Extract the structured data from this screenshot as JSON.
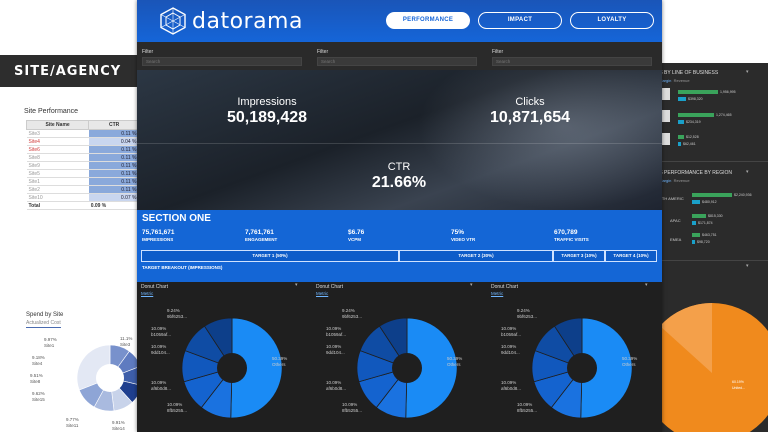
{
  "left": {
    "header": "SITE/AGENCY",
    "section_title": "Site Performance",
    "table": {
      "col_site": "Site Name",
      "col_ctr": "CTR",
      "rows": [
        {
          "site": "Site3",
          "ctr": "0.11 %"
        },
        {
          "site": "Site4",
          "ctr": "0.04 %"
        },
        {
          "site": "Site6",
          "ctr": "0.11 %"
        },
        {
          "site": "Site8",
          "ctr": "0.11 %"
        },
        {
          "site": "Site9",
          "ctr": "0.11 %"
        },
        {
          "site": "Site5",
          "ctr": "0.11 %"
        },
        {
          "site": "Site1",
          "ctr": "0.11 %"
        },
        {
          "site": "Site2",
          "ctr": "0.11 %"
        },
        {
          "site": "Site10",
          "ctr": "0.07 %"
        }
      ],
      "total_label": "Total",
      "total_value": "0.09 %"
    },
    "spend_title": "Spend by Site",
    "spend_sub": "Actualized Cost",
    "pie_labels": [
      {
        "pct": "9.97%",
        "name": "Site1"
      },
      {
        "pct": "9.18%",
        "name": "Site4"
      },
      {
        "pct": "9.51%",
        "name": "Site8"
      },
      {
        "pct": "9.62%",
        "name": "Site15"
      },
      {
        "pct": "9.77%",
        "name": "Site11"
      },
      {
        "pct": "9.91%",
        "name": "Site14"
      },
      {
        "pct": "11.1%",
        "name": "Site3"
      }
    ]
  },
  "nav": {
    "brand": "datorama",
    "tabs": [
      "PERFORMANCE",
      "IMPACT",
      "LOYALTY"
    ]
  },
  "filters": [
    {
      "label": "Filter",
      "placeholder": "Search"
    },
    {
      "label": "Filter",
      "placeholder": "Search"
    },
    {
      "label": "Filter",
      "placeholder": "Search"
    }
  ],
  "kpis": {
    "impressions": {
      "label": "Impressions",
      "value": "50,189,428"
    },
    "clicks": {
      "label": "Clicks",
      "value": "10,871,654"
    },
    "ctr": {
      "label": "CTR",
      "value": "21.66%"
    }
  },
  "section": {
    "title": "SECTION ONE",
    "metrics": [
      {
        "value": "75,761,671",
        "label": "IMPRESSIONS"
      },
      {
        "value": "7,761,761",
        "label": "ENGAGEMENT"
      },
      {
        "value": "$6.76",
        "label": "VCPM"
      },
      {
        "value": "75%",
        "label": "VIDEO VTR"
      },
      {
        "value": "670,789",
        "label": "TRAFFIC VISITS"
      }
    ],
    "targets": [
      "TARGET 1 (50%)",
      "TARGET 2 (30%)",
      "TARGET 3 (10%)",
      "TARGET 4 (10%)"
    ],
    "breakout": "TARGET BREAKOUT (IMPRESSIONS)"
  },
  "donuts": [
    {
      "title": "Donut Chart",
      "metric": "Metric"
    },
    {
      "title": "Donut Chart",
      "metric": "Metric"
    },
    {
      "title": "Donut Chart",
      "metric": "Metric"
    }
  ],
  "chart_data": {
    "type": "pie",
    "labels": [
      "9bf6253...",
      "b1059af...",
      "9dd104...",
      "af6b0d8...",
      "8fb5255...",
      "Others"
    ],
    "values": [
      9.24,
      10.09,
      10.09,
      10.09,
      10.09,
      50.39
    ],
    "value_labels": [
      "9.24%",
      "10.09%",
      "10.09%",
      "10.09%",
      "10.09%",
      "50.39%"
    ],
    "colors": [
      "#0d3f8a",
      "#0f4ca4",
      "#1158bd",
      "#1463cf",
      "#1a72e0",
      "#1a8bf5"
    ]
  },
  "right": {
    "title1": "ES BY LINE OF BUSINESS",
    "tabs1": [
      "s Margin",
      "Revenue"
    ],
    "lob": [
      {
        "value": "1,956,995",
        "sub": "$398,320"
      },
      {
        "value": "1,274,465",
        "sub": "$234,319"
      },
      {
        "value": "$12,528",
        "sub": "$62,461"
      }
    ],
    "title2": "ES PERFORMANCE BY REGION",
    "tabs2": [
      "s Margin",
      "Revenue"
    ],
    "regions": [
      {
        "name": "ORTH AMERIC",
        "value": "$2,240,936",
        "sub": "$480,912"
      },
      {
        "name": "APAC",
        "value": "$815,330",
        "sub": "$171,874"
      },
      {
        "name": "EMEA",
        "value": "$463,751",
        "sub": "$98,720"
      }
    ],
    "pie_label_pct": "60.19%",
    "pie_label_name": "United..."
  }
}
